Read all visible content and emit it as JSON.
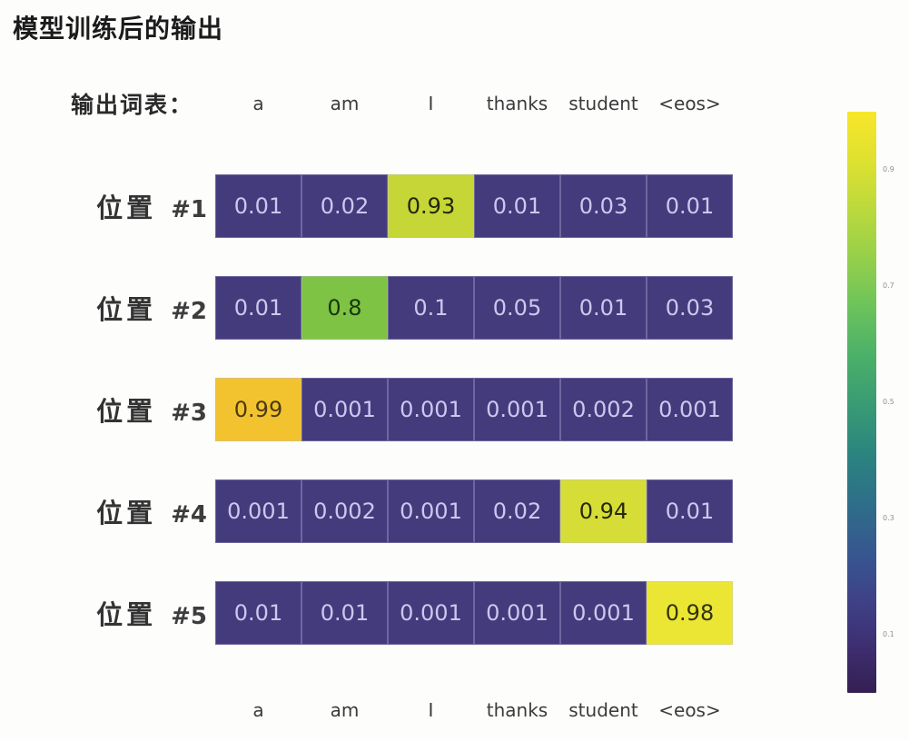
{
  "header": {
    "title": "模型训练后的输出",
    "vocab_label": "输出词表："
  },
  "columns": [
    "a",
    "am",
    "I",
    "thanks",
    "student",
    "<eos>"
  ],
  "colors": {
    "cell_base_bg": "#443b7d",
    "cell_base_text": "#cdc7ee",
    "highlight_093": "#c6d637",
    "highlight_080": "#7ec344",
    "highlight_099": "#f2c32f",
    "highlight_094": "#d6dd37",
    "highlight_098": "#ebe634",
    "background": "#fdfdfc"
  },
  "ui": {
    "rows": [
      {
        "label_cn": "位置",
        "label_num": "#1",
        "cells": [
          {
            "value": "0.01",
            "bg": "#443b7d",
            "fg": "#cdc7ee"
          },
          {
            "value": "0.02",
            "bg": "#443b7d",
            "fg": "#cdc7ee"
          },
          {
            "value": "0.93",
            "bg": "#c6d637",
            "fg": "#232708"
          },
          {
            "value": "0.01",
            "bg": "#443b7d",
            "fg": "#cdc7ee"
          },
          {
            "value": "0.03",
            "bg": "#443b7d",
            "fg": "#cdc7ee"
          },
          {
            "value": "0.01",
            "bg": "#443b7d",
            "fg": "#cdc7ee"
          }
        ]
      },
      {
        "label_cn": "位置",
        "label_num": "#2",
        "cells": [
          {
            "value": "0.01",
            "bg": "#443b7d",
            "fg": "#cdc7ee"
          },
          {
            "value": "0.8",
            "bg": "#7ec344",
            "fg": "#17380e"
          },
          {
            "value": "0.1",
            "bg": "#443b7d",
            "fg": "#cdc7ee"
          },
          {
            "value": "0.05",
            "bg": "#443b7d",
            "fg": "#cdc7ee"
          },
          {
            "value": "0.01",
            "bg": "#443b7d",
            "fg": "#cdc7ee"
          },
          {
            "value": "0.03",
            "bg": "#443b7d",
            "fg": "#cdc7ee"
          }
        ]
      },
      {
        "label_cn": "位置",
        "label_num": "#3",
        "cells": [
          {
            "value": "0.99",
            "bg": "#f2c32f",
            "fg": "#4a3a10"
          },
          {
            "value": "0.001",
            "bg": "#443b7d",
            "fg": "#cdc7ee"
          },
          {
            "value": "0.001",
            "bg": "#443b7d",
            "fg": "#cdc7ee"
          },
          {
            "value": "0.001",
            "bg": "#443b7d",
            "fg": "#cdc7ee"
          },
          {
            "value": "0.002",
            "bg": "#443b7d",
            "fg": "#cdc7ee"
          },
          {
            "value": "0.001",
            "bg": "#443b7d",
            "fg": "#cdc7ee"
          }
        ]
      },
      {
        "label_cn": "位置",
        "label_num": "#4",
        "cells": [
          {
            "value": "0.001",
            "bg": "#443b7d",
            "fg": "#cdc7ee"
          },
          {
            "value": "0.002",
            "bg": "#443b7d",
            "fg": "#cdc7ee"
          },
          {
            "value": "0.001",
            "bg": "#443b7d",
            "fg": "#cdc7ee"
          },
          {
            "value": "0.02",
            "bg": "#443b7d",
            "fg": "#cdc7ee"
          },
          {
            "value": "0.94",
            "bg": "#d6dd37",
            "fg": "#26290b"
          },
          {
            "value": "0.01",
            "bg": "#443b7d",
            "fg": "#cdc7ee"
          }
        ]
      },
      {
        "label_cn": "位置",
        "label_num": "#5",
        "cells": [
          {
            "value": "0.01",
            "bg": "#443b7d",
            "fg": "#cdc7ee"
          },
          {
            "value": "0.01",
            "bg": "#443b7d",
            "fg": "#cdc7ee"
          },
          {
            "value": "0.001",
            "bg": "#443b7d",
            "fg": "#cdc7ee"
          },
          {
            "value": "0.001",
            "bg": "#443b7d",
            "fg": "#cdc7ee"
          },
          {
            "value": "0.001",
            "bg": "#443b7d",
            "fg": "#cdc7ee"
          },
          {
            "value": "0.98",
            "bg": "#ebe634",
            "fg": "#32330e"
          }
        ]
      }
    ]
  },
  "colorbar": {
    "ticks": [
      "0.9",
      "0.7",
      "0.5",
      "0.3",
      "0.1"
    ]
  },
  "chart_data": {
    "type": "heatmap",
    "title": "模型训练后的输出",
    "x_categories": [
      "a",
      "am",
      "I",
      "thanks",
      "student",
      "<eos>"
    ],
    "y_categories": [
      "位置 #1",
      "位置 #2",
      "位置 #3",
      "位置 #4",
      "位置 #5"
    ],
    "matrix": [
      [
        0.01,
        0.02,
        0.93,
        0.01,
        0.03,
        0.01
      ],
      [
        0.01,
        0.8,
        0.1,
        0.05,
        0.01,
        0.03
      ],
      [
        0.99,
        0.001,
        0.001,
        0.001,
        0.002,
        0.001
      ],
      [
        0.001,
        0.002,
        0.001,
        0.02,
        0.94,
        0.01
      ],
      [
        0.01,
        0.01,
        0.001,
        0.001,
        0.001,
        0.98
      ]
    ],
    "value_range": [
      0,
      1
    ],
    "colormap": "viridis",
    "colorbar_position": "right",
    "colorbar_ticks": [
      0.9,
      0.7,
      0.5,
      0.3,
      0.1
    ],
    "cell_labels_shown": true
  }
}
